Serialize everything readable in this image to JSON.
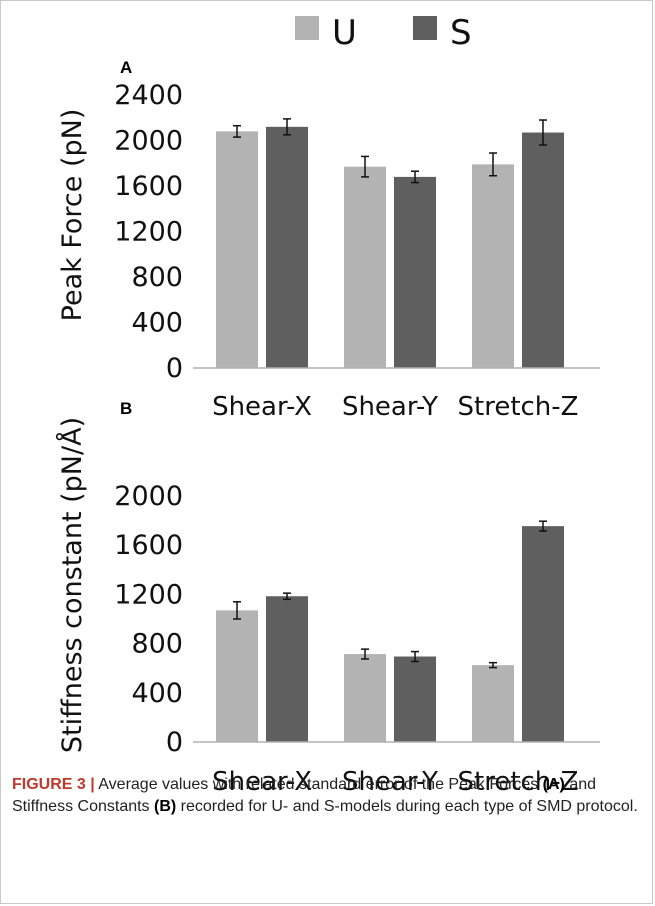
{
  "legend": [
    {
      "label": "U",
      "color": "#b3b3b3"
    },
    {
      "label": "S",
      "color": "#5f5f5f"
    }
  ],
  "chart_data": [
    {
      "panel": "A",
      "type": "bar",
      "categories": [
        "Shear-X",
        "Shear-Y",
        "Stretch-Z"
      ],
      "series": [
        {
          "name": "U",
          "color": "#b3b3b3",
          "values": [
            2080,
            1770,
            1790
          ],
          "errors": [
            50,
            90,
            100
          ]
        },
        {
          "name": "S",
          "color": "#5f5f5f",
          "values": [
            2120,
            1680,
            2070
          ],
          "errors": [
            70,
            50,
            110
          ]
        }
      ],
      "ylabel": "Peak Force (pN)",
      "ylim": [
        0,
        2400
      ],
      "yticks": [
        0,
        400,
        800,
        1200,
        1600,
        2000,
        2400
      ],
      "grid": false
    },
    {
      "panel": "B",
      "type": "bar",
      "categories": [
        "Shear-X",
        "Shear-Y",
        "Stretch-Z"
      ],
      "series": [
        {
          "name": "U",
          "color": "#b3b3b3",
          "values": [
            1070,
            715,
            625
          ],
          "errors": [
            70,
            40,
            20
          ]
        },
        {
          "name": "S",
          "color": "#5f5f5f",
          "values": [
            1185,
            695,
            1755
          ],
          "errors": [
            25,
            40,
            40
          ]
        }
      ],
      "ylabel": "Stiffness constant (pN/Å)",
      "ylim": [
        0,
        2000
      ],
      "yticks": [
        0,
        400,
        800,
        1200,
        1600,
        2000
      ],
      "grid": false
    }
  ],
  "caption": {
    "figure_label": "FIGURE 3 |",
    "text_1": " Average values with related standard error of the Peak Forces ",
    "ref_a": "(A)",
    "text_2": " and Stiffness Constants ",
    "ref_b": "(B)",
    "text_3": " recorded for U- and S-models during each type of SMD protocol."
  }
}
